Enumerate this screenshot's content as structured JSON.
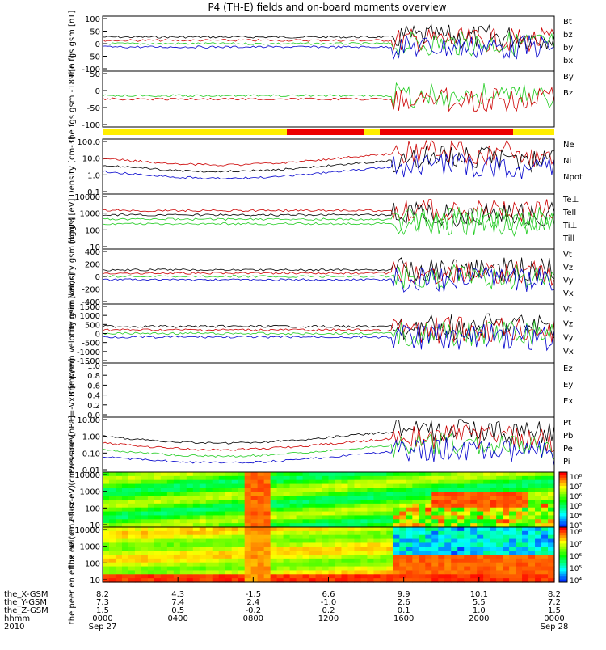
{
  "title": "P4 (TH-E) fields and on-board moments overview",
  "chart_data": [
    {
      "type": "line",
      "id": "fgs",
      "ylabel": "the fgs gsm [nT]",
      "ylim": [
        -100,
        100
      ],
      "yticks": [
        "100",
        "50",
        "0",
        "-50",
        "-100"
      ],
      "legend": [
        {
          "name": "Bt",
          "color": "#000000"
        },
        {
          "name": "bz",
          "color": "#cc0000"
        },
        {
          "name": "by",
          "color": "#22cc22"
        },
        {
          "name": "bx",
          "color": "#0000cc"
        }
      ]
    },
    {
      "type": "line",
      "id": "fgs-dsl",
      "ylabel": "the fgs gsm -189 [nT]",
      "ylim": [
        -120,
        60
      ],
      "yticks": [
        "50",
        "0",
        "-50",
        "-100"
      ],
      "legend": [
        {
          "name": "By",
          "color": "#22cc22"
        },
        {
          "name": "Bz",
          "color": "#cc0000"
        }
      ]
    },
    {
      "type": "line",
      "id": "density",
      "ylabel": "Density [cm-3]",
      "ylim": [
        0.1,
        100
      ],
      "yticks": [
        "100.0",
        "10.0",
        "1.0",
        "0.1"
      ],
      "scale": "log",
      "legend": [
        {
          "name": "Ne",
          "color": "#cc0000"
        },
        {
          "name": "Ni",
          "color": "#000000"
        },
        {
          "name": "Npot",
          "color": "#0000cc"
        }
      ]
    },
    {
      "type": "line",
      "id": "temperature",
      "ylabel": "mggt3 [eV]",
      "ylim": [
        10,
        10000
      ],
      "yticks": [
        "10000",
        "1000",
        "100",
        "10"
      ],
      "scale": "log",
      "legend": [
        {
          "name": "Te⊥",
          "color": "#cc0000"
        },
        {
          "name": "Tell",
          "color": "#000000"
        },
        {
          "name": "Ti⊥",
          "color": "#22cc22"
        },
        {
          "name": "Till",
          "color": "#22cc22"
        }
      ]
    },
    {
      "type": "line",
      "id": "peim-velocity",
      "ylabel": "the peim velocity gsm [km/s]",
      "ylim": [
        -400,
        400
      ],
      "yticks": [
        "400",
        "200",
        "0",
        "-200",
        "-400"
      ],
      "legend": [
        {
          "name": "Vt",
          "color": "#000000"
        },
        {
          "name": "Vz",
          "color": "#cc0000"
        },
        {
          "name": "Vy",
          "color": "#22cc22"
        },
        {
          "name": "Vx",
          "color": "#0000cc"
        }
      ]
    },
    {
      "type": "line",
      "id": "peem-velocity",
      "ylabel": "the peem velocity gsm [km/s]",
      "ylim": [
        -1500,
        1500
      ],
      "yticks": [
        "1500",
        "1000",
        "500",
        "0",
        "-500",
        "-1000",
        "-1500"
      ],
      "legend": [
        {
          "name": "Vt",
          "color": "#000000"
        },
        {
          "name": "Vz",
          "color": "#cc0000"
        },
        {
          "name": "Vy",
          "color": "#22cc22"
        },
        {
          "name": "Vx",
          "color": "#0000cc"
        }
      ]
    },
    {
      "type": "line",
      "id": "efield",
      "ylabel": "E=-VxB [mV/m]",
      "ylim": [
        0,
        1
      ],
      "yticks": [
        "1.0",
        "0.8",
        "0.6",
        "0.4",
        "0.2",
        "0.0"
      ],
      "legend": [
        {
          "name": "Ez",
          "color": "#cc0000"
        },
        {
          "name": "Ey",
          "color": "#22cc22"
        },
        {
          "name": "Ex",
          "color": "#0000cc"
        }
      ]
    },
    {
      "type": "line",
      "id": "pressure",
      "ylabel": "Pressure [nPa]",
      "ylim": [
        0.005,
        10
      ],
      "yticks": [
        "10.00",
        "1.00",
        "0.10",
        "0.01"
      ],
      "scale": "log",
      "legend": [
        {
          "name": "Pt",
          "color": "#000000"
        },
        {
          "name": "Pb",
          "color": "#cc0000"
        },
        {
          "name": "Pe",
          "color": "#22cc22"
        },
        {
          "name": "Pi",
          "color": "#0000cc"
        }
      ]
    },
    {
      "type": "heatmap",
      "id": "ion-spectrogram",
      "ylabel": "the peir en eflux eV (cm2-s-sr-eV)",
      "ylim": [
        10,
        20000
      ],
      "yticks": [
        "10000",
        "1000",
        "100",
        "10"
      ],
      "scale": "log",
      "colorbar": [
        "10⁸",
        "10⁷",
        "10⁶",
        "10⁵",
        "10⁴",
        "10³"
      ]
    },
    {
      "type": "heatmap",
      "id": "electron-spectrogram",
      "ylabel": "the peer en eflux eV (cm2-s-sr-eV)",
      "ylim": [
        7,
        20000
      ],
      "yticks": [
        "10000",
        "1000",
        "100",
        "10"
      ],
      "scale": "log",
      "colorbar": [
        "10⁸",
        "10⁷",
        "10⁶",
        "10⁵",
        "10⁴"
      ]
    }
  ],
  "xaxis": {
    "ticks": [
      "0000",
      "0400",
      "0800",
      "1200",
      "1600",
      "2000",
      "0000"
    ],
    "rows": [
      {
        "name": "the_X-GSM",
        "values": [
          "8.2",
          "4.3",
          "-1.5",
          "6.6",
          "9.9",
          "10.1",
          "8.2"
        ]
      },
      {
        "name": "the_Y-GSM",
        "values": [
          "7.3",
          "7.4",
          "2.4",
          "-1.0",
          "2.6",
          "5.5",
          "7.2"
        ]
      },
      {
        "name": "the_Z-GSM",
        "values": [
          "1.5",
          "0.5",
          "-0.2",
          "0.2",
          "0.1",
          "1.0",
          "1.5"
        ]
      },
      {
        "name": "hhmm",
        "values": [
          "0000",
          "0400",
          "0800",
          "1200",
          "1600",
          "2000",
          "0000"
        ]
      }
    ],
    "year": "2010",
    "start_date": "Sep 27",
    "end_date": "Sep 28"
  }
}
